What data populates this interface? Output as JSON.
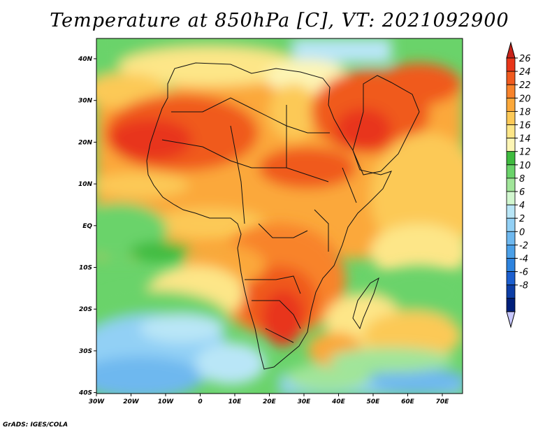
{
  "title": "Temperature at 850hPa [C], VT: 2021092900",
  "credit": "GrADS: IGES/COLA",
  "map": {
    "lon_range": [
      -30,
      75
    ],
    "lat_range": [
      -40,
      45
    ],
    "x_ticks": [
      "30W",
      "20W",
      "10W",
      "0",
      "10E",
      "20E",
      "30E",
      "40E",
      "50E",
      "60E",
      "70E"
    ],
    "y_ticks": [
      "40N",
      "30N",
      "20N",
      "10N",
      "EQ",
      "10S",
      "20S",
      "30S",
      "40S"
    ],
    "ocean_color": "#6ad36a"
  },
  "colorbar": {
    "labels": [
      "26",
      "24",
      "22",
      "20",
      "18",
      "16",
      "14",
      "12",
      "10",
      "8",
      "6",
      "4",
      "2",
      "0",
      "-2",
      "-4",
      "-6",
      "-8"
    ],
    "colors": [
      "#e8361a",
      "#f05a1f",
      "#f8832b",
      "#fba83a",
      "#fcc957",
      "#fde688",
      "#fdf5b5",
      "#3fbb3f",
      "#6ad36a",
      "#a1e59a",
      "#d2f7cf",
      "#b9e6f7",
      "#92d0f5",
      "#6eb8ef",
      "#4ba0e8",
      "#2d83de",
      "#1c5fcf",
      "#0d3ea6",
      "#001f7a"
    ],
    "top_color": "#c8231a",
    "bottom_color": "#c8c8ff"
  }
}
